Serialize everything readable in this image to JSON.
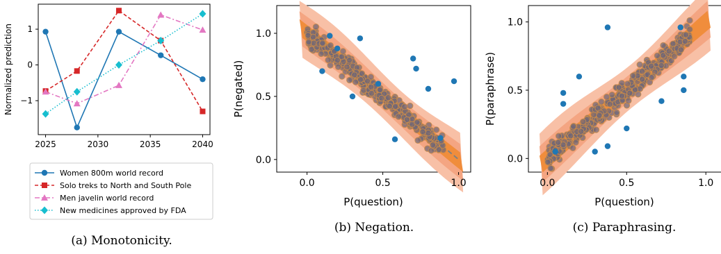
{
  "chart_data": [
    {
      "type": "line",
      "ylabel": "Normalized prediction",
      "xlim": [
        2024.3,
        2040.7
      ],
      "ylim": [
        -1.95,
        1.7
      ],
      "xticks": [
        2025,
        2030,
        2035,
        2040
      ],
      "yticks": [
        -1,
        0,
        1
      ],
      "ytick_labels": [
        "−1",
        "0",
        "1"
      ],
      "series": [
        {
          "name": "Women 800m world record",
          "color": "#1f77b4",
          "dash": "solid",
          "marker": "circle",
          "x": [
            2025,
            2028,
            2032,
            2036,
            2040
          ],
          "y": [
            0.93,
            -1.75,
            0.93,
            0.27,
            -0.4
          ]
        },
        {
          "name": "Solo treks to North and South Pole",
          "color": "#d62728",
          "dash": "dashed",
          "marker": "square",
          "x": [
            2025,
            2028,
            2032,
            2036,
            2040
          ],
          "y": [
            -0.73,
            -0.17,
            1.52,
            0.68,
            -1.3
          ]
        },
        {
          "name": "Men javelin world record",
          "color": "#e377c2",
          "dash": "dashdot",
          "marker": "triangle",
          "x": [
            2025,
            2028,
            2032,
            2036,
            2040
          ],
          "y": [
            -0.75,
            -1.08,
            -0.57,
            1.4,
            0.98
          ]
        },
        {
          "name": "New medicines approved by FDA",
          "color": "#17becf",
          "dash": "dotted",
          "marker": "diamond",
          "x": [
            2025,
            2028,
            2032,
            2036,
            2040
          ],
          "y": [
            -1.37,
            -0.75,
            0.0,
            0.68,
            1.43
          ]
        }
      ],
      "caption": "(a) Monotonicity."
    },
    {
      "type": "scatter",
      "xlabel": "P(question)",
      "ylabel": "P(negated)",
      "xlim": [
        -0.2,
        1.08
      ],
      "ylim": [
        -0.1,
        1.22
      ],
      "xticks": [
        0.0,
        0.5,
        1.0
      ],
      "yticks": [
        0.0,
        0.5,
        1.0
      ],
      "xtick_labels": [
        "0.0",
        "0.5",
        "1.0"
      ],
      "ytick_labels": [
        "0.0",
        "0.5",
        "1.0"
      ],
      "reference_line": {
        "from": [
          0.0,
          1.0
        ],
        "to": [
          1.0,
          0.0
        ],
        "style": "dashed",
        "color": "#808080"
      },
      "density_colors": [
        "#f8c0a6",
        "#f4a582",
        "#f08d3c"
      ],
      "point_color": "#1f77b4",
      "cloud": {
        "n": 360,
        "shape": "descending",
        "spread": 0.055
      },
      "outliers": [
        [
          0.97,
          0.62
        ],
        [
          0.7,
          0.8
        ],
        [
          0.35,
          0.96
        ],
        [
          0.58,
          0.16
        ],
        [
          0.1,
          0.7
        ],
        [
          0.8,
          0.56
        ],
        [
          0.72,
          0.72
        ],
        [
          0.88,
          0.17
        ],
        [
          0.15,
          0.98
        ],
        [
          0.47,
          0.6
        ],
        [
          0.3,
          0.5
        ],
        [
          0.2,
          0.88
        ]
      ],
      "caption": "(b) Negation."
    },
    {
      "type": "scatter",
      "xlabel": "P(question)",
      "ylabel": "P(paraphrase)",
      "xlim": [
        -0.12,
        1.1
      ],
      "ylim": [
        -0.1,
        1.12
      ],
      "xticks": [
        0.0,
        0.5,
        1.0
      ],
      "yticks": [
        0.0,
        0.5,
        1.0
      ],
      "xtick_labels": [
        "0.0",
        "0.5",
        "1.0"
      ],
      "ytick_labels": [
        "0.0",
        "0.5",
        "1.0"
      ],
      "density_colors": [
        "#f8c0a6",
        "#f4a582",
        "#f08d3c"
      ],
      "point_color": "#1f77b4",
      "cloud": {
        "n": 360,
        "shape": "ascending",
        "spread": 0.06
      },
      "outliers": [
        [
          0.38,
          0.96
        ],
        [
          0.84,
          0.96
        ],
        [
          0.2,
          0.6
        ],
        [
          0.1,
          0.48
        ],
        [
          0.1,
          0.4
        ],
        [
          0.86,
          0.6
        ],
        [
          0.86,
          0.5
        ],
        [
          0.72,
          0.42
        ],
        [
          0.3,
          0.05
        ],
        [
          0.38,
          0.09
        ],
        [
          0.05,
          0.05
        ],
        [
          0.5,
          0.22
        ]
      ],
      "caption": "(c) Paraphrasing."
    }
  ]
}
